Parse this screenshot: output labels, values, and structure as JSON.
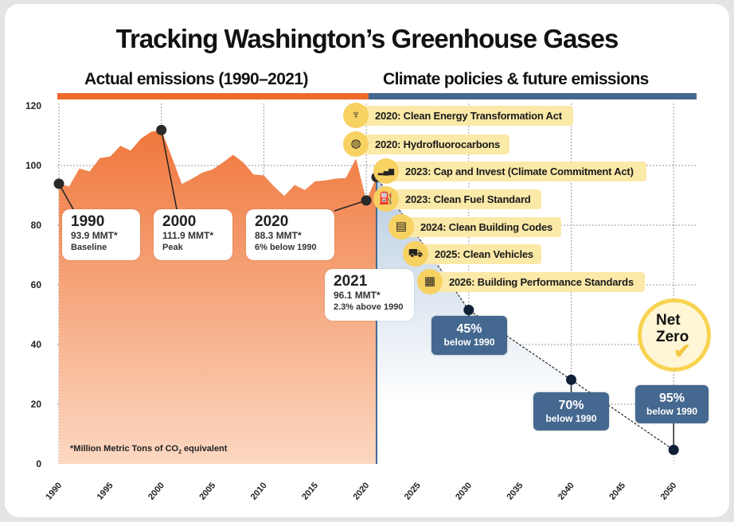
{
  "title": "Tracking Washington’s Greenhouse Gases",
  "sections": {
    "actual": "Actual emissions (1990–2021)",
    "future": "Climate policies & future emissions"
  },
  "colors": {
    "actual": "#f07a40",
    "future": "#44688f",
    "policy_pill": "#fbe9a8",
    "policy_icon": "#f8d163"
  },
  "chart_data": {
    "type": "area",
    "ylim": [
      0,
      120
    ],
    "yticks": [
      "0",
      "20",
      "40",
      "60",
      "80",
      "100",
      "120"
    ],
    "xticks": [
      "1990",
      "1995",
      "2000",
      "2005",
      "2010",
      "2015",
      "2020",
      "2025",
      "2030",
      "2035",
      "2040",
      "2045",
      "2050"
    ],
    "grid": true,
    "unit_note": {
      "prefix": "*Million Metric Tons of CO",
      "sub": "2",
      "suffix": " equivalent"
    },
    "actual": {
      "x": [
        1990,
        1991,
        1992,
        1993,
        1994,
        1995,
        1996,
        1997,
        1998,
        1999,
        2000,
        2001,
        2002,
        2003,
        2004,
        2005,
        2006,
        2007,
        2008,
        2009,
        2010,
        2011,
        2012,
        2013,
        2014,
        2015,
        2016,
        2017,
        2018,
        2019,
        2020,
        2021
      ],
      "y": [
        93.9,
        93,
        99,
        98,
        102.5,
        103,
        106.6,
        105,
        109,
        111.3,
        111.9,
        103,
        93.8,
        95.6,
        97.6,
        98.7,
        101,
        103.6,
        101,
        97,
        96.7,
        93,
        89.8,
        93.5,
        91.8,
        94.7,
        95,
        95.6,
        95.8,
        102.3,
        88.3,
        96.1
      ]
    },
    "targets": {
      "x": [
        2021,
        2030,
        2040,
        2050
      ],
      "y": [
        96.1,
        51.6,
        28.2,
        4.7
      ]
    }
  },
  "callouts": [
    {
      "year": "1990",
      "value": "93.9 MMT*",
      "note": "Baseline"
    },
    {
      "year": "2000",
      "value": "111.9 MMT*",
      "note": "Peak"
    },
    {
      "year": "2020",
      "value": "88.3 MMT*",
      "note": "6% below 1990"
    },
    {
      "year": "2021",
      "value": "96.1 MMT*",
      "note": "2.3% above 1990"
    }
  ],
  "targets": [
    {
      "pct": "45%",
      "label": "below 1990"
    },
    {
      "pct": "70%",
      "label": "below 1990"
    },
    {
      "pct": "95%",
      "label": "below 1990"
    }
  ],
  "net_zero": {
    "line1": "Net",
    "line2": "Zero"
  },
  "policies": [
    {
      "label": "2020: Clean Energy Transformation Act",
      "icon": "transmission-tower-icon",
      "glyph": "♆"
    },
    {
      "label": "2020: Hydrofluorocarbons",
      "icon": "globe-thermometer-icon",
      "glyph": "◍"
    },
    {
      "label": "2023: Cap and Invest (Climate Commitment Act)",
      "icon": "bar-chart-icon",
      "glyph": "▂▄▆"
    },
    {
      "label": "2023: Clean Fuel Standard",
      "icon": "fuel-pump-icon",
      "glyph": "⛽"
    },
    {
      "label": "2024: Clean Building Codes",
      "icon": "clipboard-icon",
      "glyph": "▤"
    },
    {
      "label": "2025: Clean Vehicles",
      "icon": "car-icon",
      "glyph": "⛟"
    },
    {
      "label": "2026: Building Performance Standards",
      "icon": "building-icon",
      "glyph": "▦"
    }
  ]
}
